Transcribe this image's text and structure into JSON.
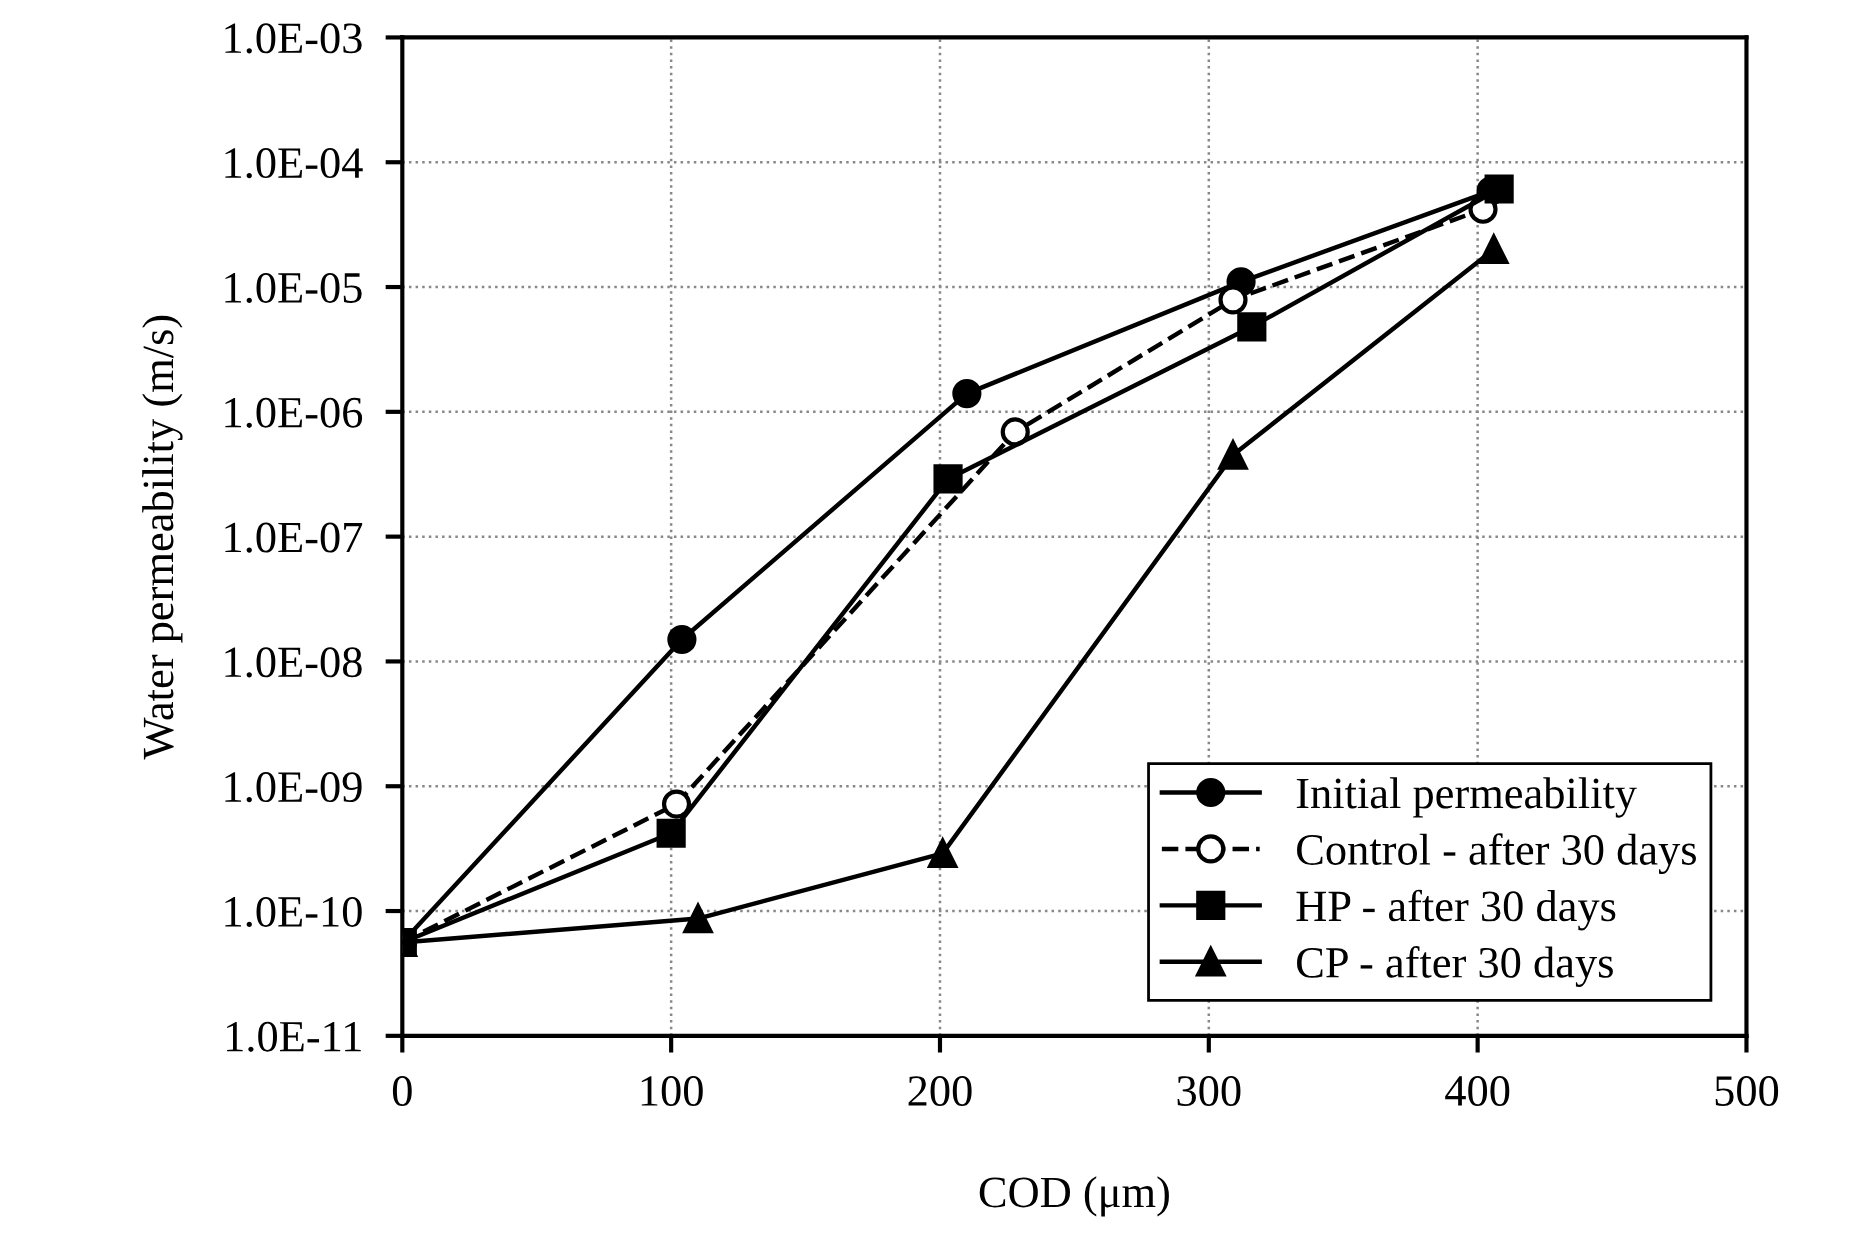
{
  "chart_data": {
    "type": "line",
    "xlabel": "COD (μm)",
    "ylabel": "Water permeability (m/s)",
    "log": "y",
    "xlim": [
      0,
      500
    ],
    "xticks": [
      0,
      100,
      200,
      300,
      400,
      500
    ],
    "ylim": [
      1e-11,
      0.001
    ],
    "yticks": [
      {
        "value": 1e-11,
        "label": "1.0E-11"
      },
      {
        "value": 1e-10,
        "label": "1.0E-10"
      },
      {
        "value": 1e-09,
        "label": "1.0E-09"
      },
      {
        "value": 1e-08,
        "label": "1.0E-08"
      },
      {
        "value": 1e-07,
        "label": "1.0E-07"
      },
      {
        "value": 1e-06,
        "label": "1.0E-06"
      },
      {
        "value": 1e-05,
        "label": "1.0E-05"
      },
      {
        "value": 0.0001,
        "label": "1.0E-04"
      },
      {
        "value": 0.001,
        "label": "1.0E-03"
      }
    ],
    "grid": true,
    "legend": "bottom right",
    "series": [
      {
        "name": "Initial permeability",
        "color": "#000000",
        "marker": "circle",
        "line_style": "solid",
        "x": [
          0,
          104,
          210,
          312,
          405
        ],
        "values": [
          5.6e-11,
          1.5e-08,
          1.4e-06,
          1.1e-05,
          5.9e-05
        ]
      },
      {
        "name": "Control - after 30 days",
        "color": "#000000",
        "marker": "circle",
        "line_style": "dashed",
        "x": [
          0,
          102,
          228,
          309,
          402
        ],
        "values": [
          5.6e-11,
          7.2e-10,
          6.9e-07,
          7.9e-06,
          4.2e-05
        ]
      },
      {
        "name": "HP - after 30 days",
        "color": "#000000",
        "marker": "square",
        "line_style": "solid",
        "x": [
          0,
          100,
          203,
          316,
          408
        ],
        "values": [
          5.6e-11,
          4.2e-10,
          2.9e-07,
          4.8e-06,
          6.1e-05
        ]
      },
      {
        "name": "CP - after 30 days",
        "color": "#000000",
        "marker": "triangle",
        "line_style": "solid",
        "x": [
          0,
          110,
          201,
          309,
          406
        ],
        "values": [
          5.6e-11,
          8.7e-11,
          2.9e-10,
          4.5e-07,
          2e-05
        ]
      }
    ]
  }
}
